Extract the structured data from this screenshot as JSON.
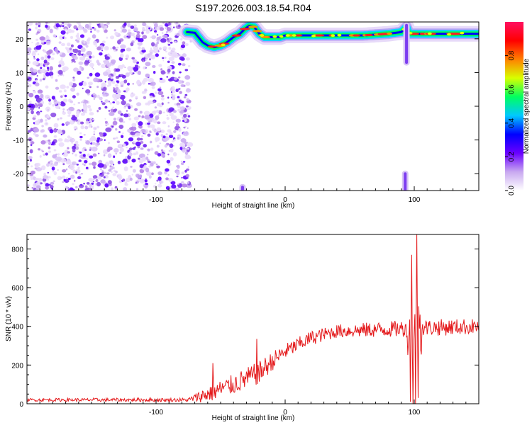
{
  "title": "S197.2026.003.18.54.R04",
  "colorbar": {
    "label": "Normalized spectral amplitude",
    "ticks": [
      "0.0",
      "0.2",
      "0.4",
      "0.6",
      "0.8"
    ],
    "tick_values": [
      0.0,
      0.2,
      0.4,
      0.6,
      0.8
    ],
    "range": [
      0.0,
      1.0
    ],
    "colors": [
      "#ffffff",
      "#c8a8f0",
      "#6a00ff",
      "#0000ff",
      "#00c8ff",
      "#00ff60",
      "#d8ff00",
      "#ff8000",
      "#ff0000",
      "#ff1060"
    ]
  },
  "chart_data": [
    {
      "type": "heatmap",
      "name": "spectrogram",
      "xlabel": "Height of straight line (km)",
      "ylabel": "Frequency (Hz)",
      "xlim": [
        -200,
        150
      ],
      "ylim": [
        -25,
        25
      ],
      "xticks": [
        -100,
        0,
        100
      ],
      "xtick_labels": [
        "-100",
        "0",
        "100"
      ],
      "yticks": [
        -20,
        -10,
        0,
        10,
        20
      ],
      "ytick_labels": [
        "-20",
        "-10",
        "0",
        "10",
        "20"
      ],
      "noise_region_x": [
        -200,
        -74
      ],
      "ridge": {
        "x": [
          -76,
          -70,
          -64,
          -60,
          -55,
          -50,
          -45,
          -40,
          -35,
          -31,
          -28,
          -24,
          -20,
          -16,
          -10,
          -4,
          0,
          10,
          20,
          40,
          60,
          80,
          90,
          94,
          96,
          100,
          110,
          130,
          150
        ],
        "y": [
          22,
          21.8,
          19,
          18,
          17.5,
          18,
          19,
          20.5,
          21.5,
          23,
          23.8,
          23.5,
          21.5,
          20.5,
          20.5,
          20.5,
          21,
          21,
          21,
          21,
          21,
          21.5,
          22,
          23.5,
          21.5,
          21.5,
          21.5,
          21.5,
          21.5
        ]
      },
      "features": [
        {
          "x": 94,
          "y_from": 13,
          "y_to": 24
        },
        {
          "x": 93,
          "y_from": -25,
          "y_to": -20
        },
        {
          "x": -33,
          "y_from": -25,
          "y_to": -24
        }
      ]
    },
    {
      "type": "line",
      "name": "snr",
      "xlabel": "Height of straight line (km)",
      "ylabel": "SNR (10 * v/v)",
      "xlim": [
        -200,
        150
      ],
      "ylim": [
        0,
        875
      ],
      "xticks": [
        -100,
        0,
        100
      ],
      "xtick_labels": [
        "-100",
        "0",
        "100"
      ],
      "yticks": [
        0,
        200,
        400,
        600,
        800
      ],
      "ytick_labels": [
        "0",
        "200",
        "400",
        "600",
        "800"
      ],
      "color": "#e41a1c",
      "trend": {
        "x": [
          -200,
          -75,
          -60,
          -40,
          -20,
          -10,
          0,
          20,
          40,
          60,
          80,
          95,
          150
        ],
        "y": [
          20,
          20,
          50,
          100,
          160,
          220,
          270,
          340,
          375,
          380,
          385,
          390,
          400
        ]
      },
      "amplitude": {
        "x": [
          -200,
          -75,
          -60,
          -20,
          0,
          40,
          100,
          150
        ],
        "y": [
          8,
          10,
          45,
          60,
          40,
          35,
          45,
          40
        ]
      },
      "spikes": [
        {
          "x": -56,
          "y": 210
        },
        {
          "x": -22,
          "y": 335
        },
        {
          "x": 97,
          "y": 10
        },
        {
          "x": 98,
          "y": 770
        },
        {
          "x": 99,
          "y": 0
        },
        {
          "x": 101,
          "y": 0
        },
        {
          "x": 102,
          "y": 875
        },
        {
          "x": 103,
          "y": 30
        }
      ]
    }
  ]
}
